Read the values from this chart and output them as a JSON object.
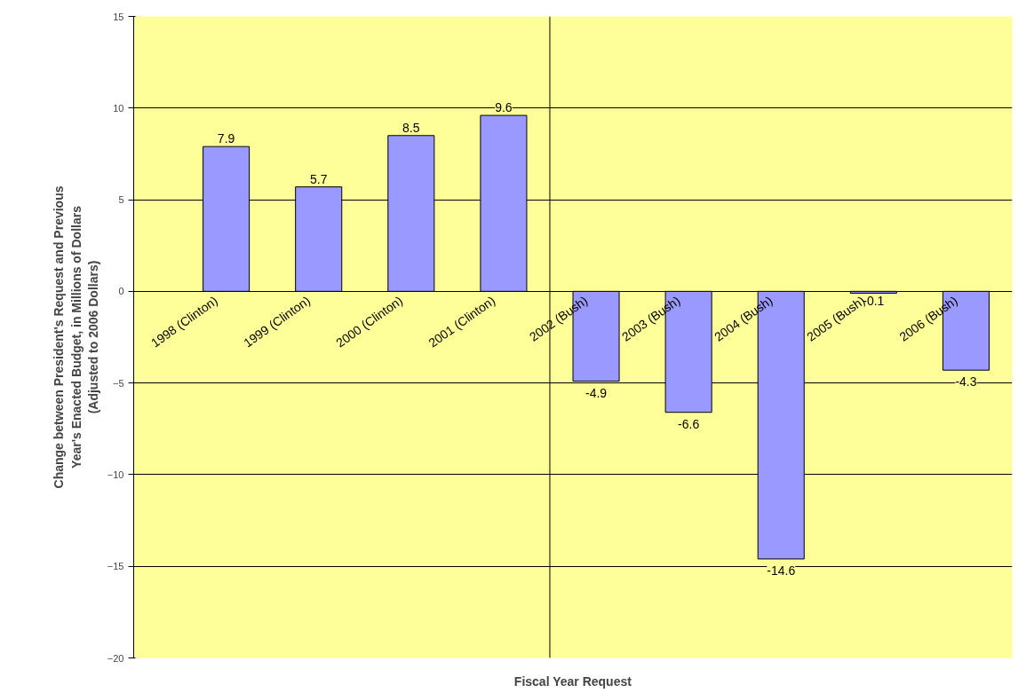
{
  "chart_data": {
    "type": "bar",
    "xlabel": "Fiscal Year Request",
    "ylabel": "Change between President's Request and Previous Year's Enacted Budget, in Millions of Dollars (Adjusted to 2006 Dollars)",
    "categories": [
      "1998 (Clinton)",
      "1999 (Clinton)",
      "2000 (Clinton)",
      "2001 (Clinton)",
      "2002 (Bush)",
      "2003 (Bush)",
      "2004 (Bush)",
      "2005 (Bush)",
      "2006 (Bush)"
    ],
    "values": [
      7.9,
      5.7,
      8.5,
      9.6,
      -4.9,
      -6.6,
      -14.6,
      -0.1,
      -4.3
    ],
    "color": "#9999ff",
    "data_labels": true,
    "ylim": [
      -20,
      15
    ],
    "yticks": [
      -20,
      -15,
      -10,
      -5,
      0,
      5,
      10,
      15
    ],
    "grid": "y"
  }
}
